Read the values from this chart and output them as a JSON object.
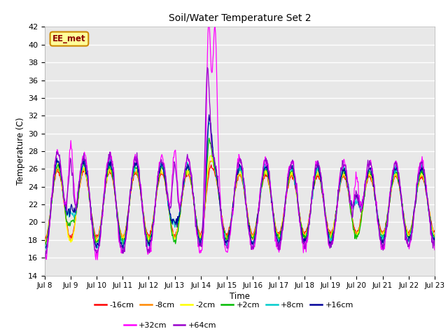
{
  "title": "Soil/Water Temperature Set 2",
  "xlabel": "Time",
  "ylabel": "Temperature (C)",
  "ylim": [
    14,
    42
  ],
  "yticks": [
    14,
    16,
    18,
    20,
    22,
    24,
    26,
    28,
    30,
    32,
    34,
    36,
    38,
    40,
    42
  ],
  "xtick_labels": [
    "Jul 8",
    "Jul 9",
    "Jul 10",
    "Jul 11",
    "Jul 12",
    "Jul 13",
    "Jul 14",
    "Jul 15",
    "Jul 16",
    "Jul 17",
    "Jul 18",
    "Jul 19",
    "Jul 20",
    "Jul 21",
    "Jul 22",
    "Jul 23"
  ],
  "series_colors": [
    "#ff0000",
    "#ff8800",
    "#ffff00",
    "#00bb00",
    "#00cccc",
    "#000099",
    "#ff00ff",
    "#9900cc"
  ],
  "series_labels": [
    "-16cm",
    "-8cm",
    "-2cm",
    "+2cm",
    "+8cm",
    "+16cm",
    "+32cm",
    "+64cm"
  ],
  "plot_bg_color": "#e8e8e8",
  "watermark_text": "EE_met",
  "watermark_bg": "#ffff99",
  "watermark_border": "#cc8800",
  "legend_ncol_row1": 6,
  "legend_ncol_row2": 2
}
